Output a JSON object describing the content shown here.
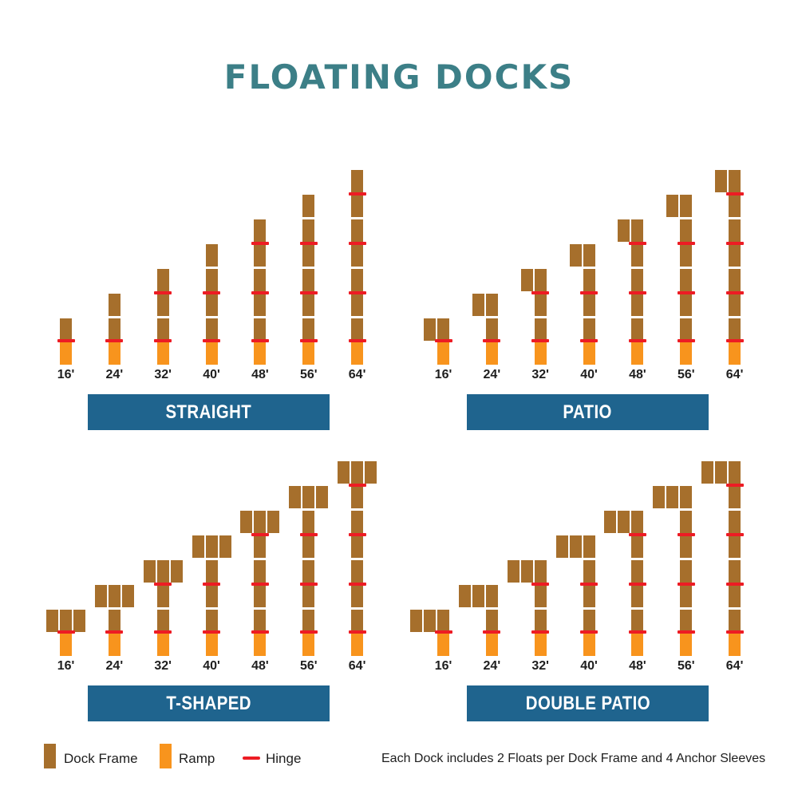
{
  "title": "FLOATING DOCKS",
  "colors": {
    "dock_frame": "#a66f2c",
    "ramp": "#f8941d",
    "hinge": "#ed1c24",
    "bar": "#1f648e",
    "title": "#3c7f87",
    "text": "#1e1e1e"
  },
  "sizes": [
    {
      "label": "16'",
      "frames": 1
    },
    {
      "label": "24'",
      "frames": 2
    },
    {
      "label": "32'",
      "frames": 3
    },
    {
      "label": "40'",
      "frames": 4
    },
    {
      "label": "48'",
      "frames": 5
    },
    {
      "label": "56'",
      "frames": 6
    },
    {
      "label": "64'",
      "frames": 7
    }
  ],
  "quadrants": [
    {
      "id": "straight",
      "label": "STRAIGHT",
      "type": "straight",
      "extra_frames": 0,
      "extra_side": "none"
    },
    {
      "id": "patio",
      "label": "PATIO",
      "type": "patio",
      "extra_frames": 1,
      "extra_side": "left-of-top"
    },
    {
      "id": "t-shaped",
      "label": "T-SHAPED",
      "type": "t",
      "extra_frames": 2,
      "extra_side": "both-sides-of-top"
    },
    {
      "id": "double-patio",
      "label": "DOUBLE PATIO",
      "type": "double",
      "extra_frames": 2,
      "extra_side": "left-of-top"
    }
  ],
  "legend": {
    "dock_frame": "Dock Frame",
    "ramp": "Ramp",
    "hinge": "Hinge"
  },
  "note": "Each Dock includes 2 Floats per Dock Frame and 4 Anchor Sleeves"
}
